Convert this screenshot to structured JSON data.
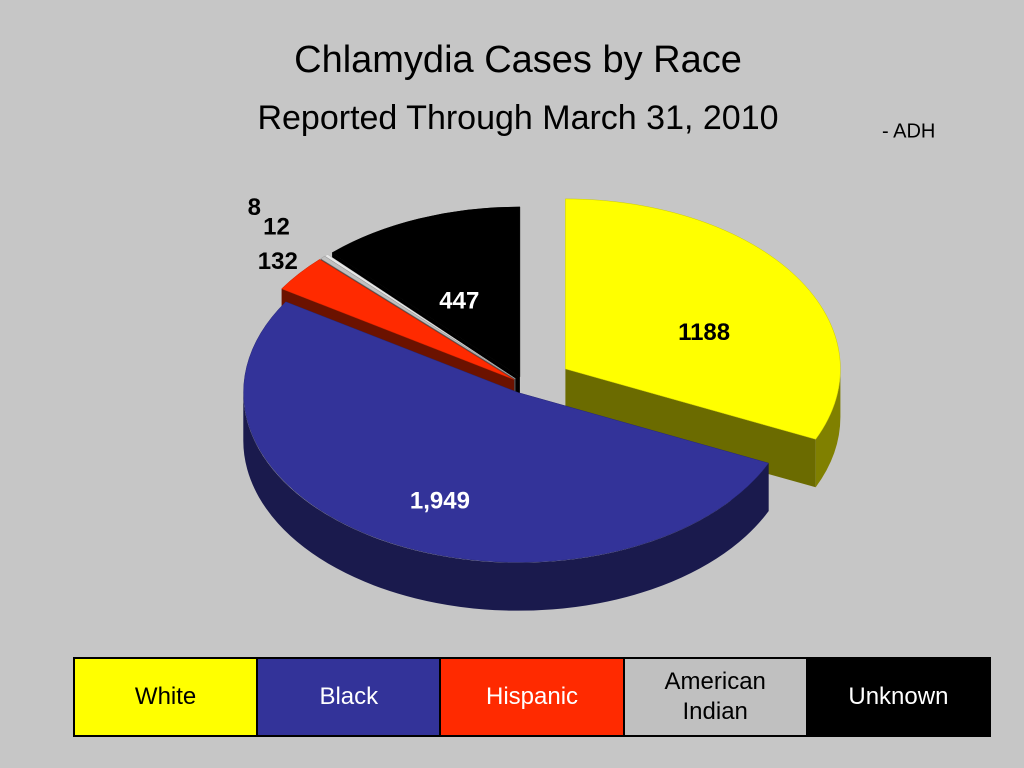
{
  "chart_data": {
    "type": "pie3d",
    "title": "Chlamydia Cases by Race",
    "subtitle": "Reported Through March 31, 2010",
    "annotation": "- ADH",
    "categories": [
      "White",
      "Black",
      "Hispanic",
      "American Indian",
      null,
      "Unknown"
    ],
    "values": [
      1188,
      1949,
      132,
      12,
      8,
      447
    ],
    "value_labels": [
      "1188",
      "1,949",
      "132",
      "12",
      "8",
      "447"
    ],
    "colors": [
      "#ffff00",
      "#333399",
      "#ff2a00",
      "#c0c0c0",
      "#e8e8e8",
      "#000000"
    ]
  }
}
